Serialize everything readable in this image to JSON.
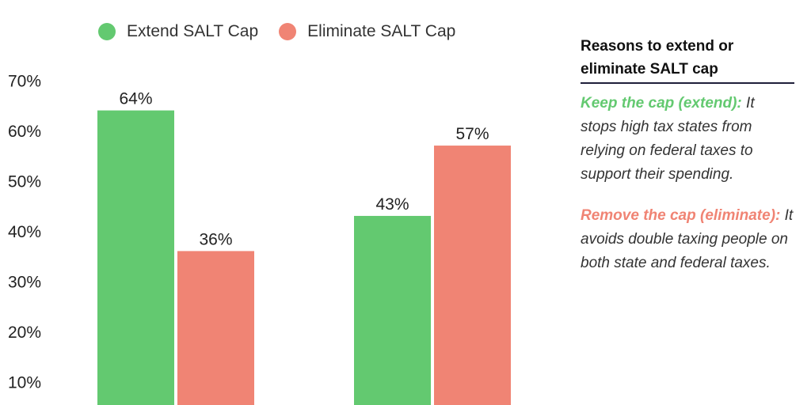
{
  "colors": {
    "extend": "#63c970",
    "eliminate": "#f08474",
    "axis_text": "#222222"
  },
  "legend": [
    {
      "label": "Extend SALT Cap",
      "color": "#63c970"
    },
    {
      "label": "Eliminate SALT Cap",
      "color": "#f08474"
    }
  ],
  "chart_data": {
    "type": "bar",
    "categories": [
      "",
      ""
    ],
    "series": [
      {
        "name": "Extend SALT Cap",
        "values": [
          64,
          43
        ],
        "labels": [
          "64%",
          "43%"
        ]
      },
      {
        "name": "Eliminate SALT Cap",
        "values": [
          36,
          57
        ],
        "labels": [
          "36%",
          "57%"
        ]
      }
    ],
    "yticks": [
      "10%",
      "20%",
      "30%",
      "40%",
      "50%",
      "60%",
      "70%"
    ],
    "ytick_values": [
      10,
      20,
      30,
      40,
      50,
      60,
      70
    ],
    "ylim": [
      0,
      70
    ],
    "grid": false,
    "legend_position": "top"
  },
  "sidebar": {
    "title": "Reasons to extend or eliminate SALT cap",
    "extend_lead": "Keep the cap (extend):",
    "extend_text": " It stops high tax states from relying on federal taxes to support their spending.",
    "eliminate_lead": "Remove the cap (eliminate):",
    "eliminate_text": " It avoids double taxing people on both state and federal taxes."
  }
}
